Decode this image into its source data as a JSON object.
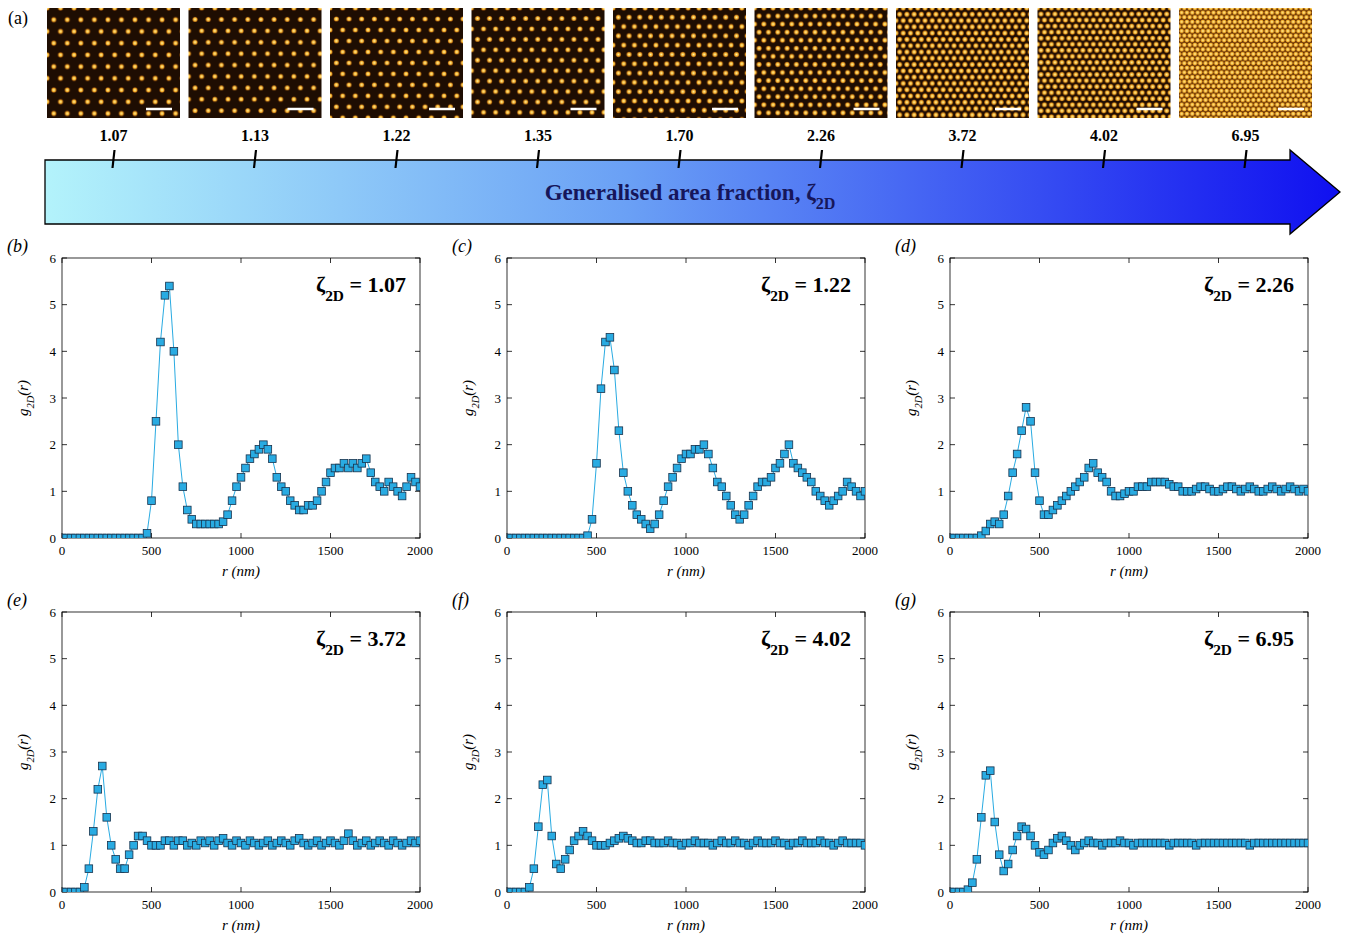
{
  "panel_a": {
    "panel": "(a)",
    "title": "Generalised area fraction, ζ2D",
    "values": [
      1.07,
      1.13,
      1.22,
      1.35,
      1.7,
      2.26,
      3.72,
      4.02,
      6.95
    ],
    "value_labels": [
      "1.07",
      "1.13",
      "1.22",
      "1.35",
      "1.70",
      "2.26",
      "3.72",
      "4.02",
      "6.95"
    ]
  },
  "chart_data": [
    {
      "type": "line",
      "panel": "(b)",
      "title": "ζ2D = 1.07",
      "x_label": "r (nm)",
      "y_label": "g2D(r)",
      "color": "#29abe2",
      "marker": "square",
      "line_style": "solid",
      "xlim": [
        0,
        2000
      ],
      "xticks": [
        0,
        500,
        1000,
        1500,
        2000
      ],
      "ylim": [
        0,
        6
      ],
      "yticks": [
        0,
        1,
        2,
        3,
        4,
        5,
        6
      ],
      "x": [
        0,
        25,
        50,
        75,
        100,
        125,
        150,
        175,
        200,
        225,
        250,
        275,
        300,
        325,
        350,
        375,
        400,
        425,
        450,
        475,
        500,
        525,
        550,
        575,
        600,
        625,
        650,
        675,
        700,
        725,
        750,
        775,
        800,
        825,
        850,
        875,
        900,
        925,
        950,
        975,
        1000,
        1025,
        1050,
        1075,
        1100,
        1125,
        1150,
        1175,
        1200,
        1225,
        1250,
        1275,
        1300,
        1325,
        1350,
        1375,
        1400,
        1425,
        1450,
        1475,
        1500,
        1525,
        1550,
        1575,
        1600,
        1625,
        1650,
        1675,
        1700,
        1725,
        1750,
        1775,
        1800,
        1825,
        1850,
        1875,
        1900,
        1925,
        1950,
        1975,
        2000
      ],
      "values": [
        0,
        0,
        0,
        0,
        0,
        0,
        0,
        0,
        0,
        0,
        0,
        0,
        0,
        0,
        0,
        0,
        0,
        0,
        0,
        0.1,
        0.8,
        2.5,
        4.2,
        5.2,
        5.4,
        4.0,
        2.0,
        1.1,
        0.6,
        0.4,
        0.3,
        0.3,
        0.3,
        0.3,
        0.3,
        0.3,
        0.35,
        0.5,
        0.8,
        1.1,
        1.3,
        1.5,
        1.7,
        1.8,
        1.9,
        2.0,
        1.9,
        1.7,
        1.3,
        1.1,
        1.0,
        0.8,
        0.7,
        0.6,
        0.6,
        0.7,
        0.7,
        0.8,
        1.0,
        1.2,
        1.4,
        1.5,
        1.5,
        1.6,
        1.5,
        1.6,
        1.5,
        1.6,
        1.7,
        1.4,
        1.2,
        1.1,
        1.0,
        1.2,
        1.1,
        1.0,
        0.9,
        1.1,
        1.3,
        1.2,
        1.1
      ]
    },
    {
      "type": "line",
      "panel": "(c)",
      "title": "ζ2D = 1.22",
      "x_label": "r (nm)",
      "y_label": "g2D(r)",
      "color": "#29abe2",
      "marker": "square",
      "line_style": "solid",
      "xlim": [
        0,
        2000
      ],
      "xticks": [
        0,
        500,
        1000,
        1500,
        2000
      ],
      "ylim": [
        0,
        6
      ],
      "yticks": [
        0,
        1,
        2,
        3,
        4,
        5,
        6
      ],
      "x": [
        0,
        25,
        50,
        75,
        100,
        125,
        150,
        175,
        200,
        225,
        250,
        275,
        300,
        325,
        350,
        375,
        400,
        425,
        450,
        475,
        500,
        525,
        550,
        575,
        600,
        625,
        650,
        675,
        700,
        725,
        750,
        775,
        800,
        825,
        850,
        875,
        900,
        925,
        950,
        975,
        1000,
        1025,
        1050,
        1075,
        1100,
        1125,
        1150,
        1175,
        1200,
        1225,
        1250,
        1275,
        1300,
        1325,
        1350,
        1375,
        1400,
        1425,
        1450,
        1475,
        1500,
        1525,
        1550,
        1575,
        1600,
        1625,
        1650,
        1675,
        1700,
        1725,
        1750,
        1775,
        1800,
        1825,
        1850,
        1875,
        1900,
        1925,
        1950,
        1975,
        2000
      ],
      "values": [
        0,
        0,
        0,
        0,
        0,
        0,
        0,
        0,
        0,
        0,
        0,
        0,
        0,
        0,
        0,
        0,
        0,
        0,
        0.05,
        0.4,
        1.6,
        3.2,
        4.2,
        4.3,
        3.6,
        2.3,
        1.4,
        1.0,
        0.7,
        0.5,
        0.4,
        0.3,
        0.2,
        0.3,
        0.5,
        0.8,
        1.1,
        1.3,
        1.5,
        1.7,
        1.8,
        1.8,
        1.9,
        1.9,
        2.0,
        1.8,
        1.5,
        1.2,
        1.1,
        0.9,
        0.7,
        0.5,
        0.4,
        0.5,
        0.7,
        0.9,
        1.1,
        1.2,
        1.2,
        1.3,
        1.5,
        1.6,
        1.8,
        2.0,
        1.6,
        1.5,
        1.4,
        1.3,
        1.2,
        1.0,
        0.9,
        0.8,
        0.7,
        0.8,
        0.9,
        1.0,
        1.2,
        1.1,
        1.0,
        0.9,
        1.0
      ]
    },
    {
      "type": "line",
      "panel": "(d)",
      "title": "ζ2D = 2.26",
      "x_label": "r (nm)",
      "y_label": "g2D(r)",
      "color": "#29abe2",
      "marker": "square",
      "line_style": "solid",
      "xlim": [
        0,
        2000
      ],
      "xticks": [
        0,
        500,
        1000,
        1500,
        2000
      ],
      "ylim": [
        0,
        6
      ],
      "yticks": [
        0,
        1,
        2,
        3,
        4,
        5,
        6
      ],
      "x": [
        0,
        25,
        50,
        75,
        100,
        125,
        150,
        175,
        200,
        225,
        250,
        275,
        300,
        325,
        350,
        375,
        400,
        425,
        450,
        475,
        500,
        525,
        550,
        575,
        600,
        625,
        650,
        675,
        700,
        725,
        750,
        775,
        800,
        825,
        850,
        875,
        900,
        925,
        950,
        975,
        1000,
        1025,
        1050,
        1075,
        1100,
        1125,
        1150,
        1175,
        1200,
        1225,
        1250,
        1275,
        1300,
        1325,
        1350,
        1375,
        1400,
        1425,
        1450,
        1475,
        1500,
        1525,
        1550,
        1575,
        1600,
        1625,
        1650,
        1675,
        1700,
        1725,
        1750,
        1775,
        1800,
        1825,
        1850,
        1875,
        1900,
        1925,
        1950,
        1975,
        2000
      ],
      "values": [
        0,
        0,
        0,
        0,
        0,
        0,
        0,
        0.05,
        0.15,
        0.3,
        0.35,
        0.3,
        0.5,
        0.9,
        1.4,
        1.8,
        2.3,
        2.8,
        2.5,
        1.4,
        0.8,
        0.5,
        0.5,
        0.6,
        0.7,
        0.8,
        0.9,
        1.0,
        1.1,
        1.2,
        1.3,
        1.5,
        1.6,
        1.4,
        1.3,
        1.2,
        1.0,
        0.9,
        0.9,
        0.95,
        1.0,
        1.0,
        1.1,
        1.1,
        1.1,
        1.2,
        1.2,
        1.2,
        1.2,
        1.15,
        1.1,
        1.1,
        1.0,
        1.0,
        1.0,
        1.05,
        1.1,
        1.1,
        1.05,
        1.0,
        1.0,
        1.05,
        1.1,
        1.1,
        1.05,
        1.0,
        1.05,
        1.1,
        1.05,
        1.0,
        1.0,
        1.05,
        1.1,
        1.05,
        1.0,
        1.05,
        1.1,
        1.05,
        1.0,
        1.05,
        1.0
      ]
    },
    {
      "type": "line",
      "panel": "(e)",
      "title": "ζ2D = 3.72",
      "x_label": "r (nm)",
      "y_label": "g2D(r)",
      "color": "#29abe2",
      "marker": "square",
      "line_style": "solid",
      "xlim": [
        0,
        2000
      ],
      "xticks": [
        0,
        500,
        1000,
        1500,
        2000
      ],
      "ylim": [
        0,
        6
      ],
      "yticks": [
        0,
        1,
        2,
        3,
        4,
        5,
        6
      ],
      "x": [
        0,
        25,
        50,
        75,
        100,
        125,
        150,
        175,
        200,
        225,
        250,
        275,
        300,
        325,
        350,
        375,
        400,
        425,
        450,
        475,
        500,
        525,
        550,
        575,
        600,
        625,
        650,
        675,
        700,
        725,
        750,
        775,
        800,
        825,
        850,
        875,
        900,
        925,
        950,
        975,
        1000,
        1025,
        1050,
        1075,
        1100,
        1125,
        1150,
        1175,
        1200,
        1225,
        1250,
        1275,
        1300,
        1325,
        1350,
        1375,
        1400,
        1425,
        1450,
        1475,
        1500,
        1525,
        1550,
        1575,
        1600,
        1625,
        1650,
        1675,
        1700,
        1725,
        1750,
        1775,
        1800,
        1825,
        1850,
        1875,
        1900,
        1925,
        1950,
        1975,
        2000
      ],
      "values": [
        0,
        0,
        0,
        0,
        0,
        0.1,
        0.5,
        1.3,
        2.2,
        2.7,
        1.6,
        1.0,
        0.7,
        0.5,
        0.5,
        0.8,
        1.0,
        1.2,
        1.2,
        1.1,
        1.0,
        1.0,
        1.0,
        1.1,
        1.1,
        1.0,
        1.1,
        1.1,
        1.0,
        1.05,
        1.0,
        1.1,
        1.05,
        1.1,
        1.0,
        1.1,
        1.15,
        1.05,
        1.0,
        1.1,
        1.05,
        1.0,
        1.1,
        1.05,
        1.0,
        1.05,
        1.1,
        1.0,
        1.05,
        1.1,
        1.05,
        1.0,
        1.1,
        1.15,
        1.05,
        1.0,
        1.05,
        1.1,
        1.0,
        1.05,
        1.1,
        1.05,
        1.0,
        1.1,
        1.25,
        1.1,
        1.0,
        1.05,
        1.1,
        1.0,
        1.05,
        1.1,
        1.05,
        1.0,
        1.1,
        1.05,
        1.0,
        1.05,
        1.1,
        1.05,
        1.1
      ]
    },
    {
      "type": "line",
      "panel": "(f)",
      "title": "ζ2D = 4.02",
      "x_label": "r (nm)",
      "y_label": "g2D(r)",
      "color": "#29abe2",
      "marker": "square",
      "line_style": "solid",
      "xlim": [
        0,
        2000
      ],
      "xticks": [
        0,
        500,
        1000,
        1500,
        2000
      ],
      "ylim": [
        0,
        6
      ],
      "yticks": [
        0,
        1,
        2,
        3,
        4,
        5,
        6
      ],
      "x": [
        0,
        25,
        50,
        75,
        100,
        125,
        150,
        175,
        200,
        225,
        250,
        275,
        300,
        325,
        350,
        375,
        400,
        425,
        450,
        475,
        500,
        525,
        550,
        575,
        600,
        625,
        650,
        675,
        700,
        725,
        750,
        775,
        800,
        825,
        850,
        875,
        900,
        925,
        950,
        975,
        1000,
        1025,
        1050,
        1075,
        1100,
        1125,
        1150,
        1175,
        1200,
        1225,
        1250,
        1275,
        1300,
        1325,
        1350,
        1375,
        1400,
        1425,
        1450,
        1475,
        1500,
        1525,
        1550,
        1575,
        1600,
        1625,
        1650,
        1675,
        1700,
        1725,
        1750,
        1775,
        1800,
        1825,
        1850,
        1875,
        1900,
        1925,
        1950,
        1975,
        2000
      ],
      "values": [
        0,
        0,
        0,
        0,
        0,
        0.1,
        0.5,
        1.4,
        2.3,
        2.4,
        1.2,
        0.6,
        0.5,
        0.7,
        0.9,
        1.1,
        1.2,
        1.3,
        1.2,
        1.1,
        1.0,
        1.0,
        1.0,
        1.05,
        1.1,
        1.15,
        1.2,
        1.15,
        1.1,
        1.05,
        1.05,
        1.1,
        1.1,
        1.05,
        1.05,
        1.05,
        1.1,
        1.05,
        1.05,
        1.0,
        1.05,
        1.05,
        1.1,
        1.05,
        1.05,
        1.05,
        1.0,
        1.05,
        1.1,
        1.05,
        1.05,
        1.1,
        1.05,
        1.05,
        1.0,
        1.05,
        1.1,
        1.05,
        1.05,
        1.05,
        1.1,
        1.05,
        1.05,
        1.0,
        1.05,
        1.05,
        1.1,
        1.05,
        1.05,
        1.05,
        1.1,
        1.05,
        1.05,
        1.0,
        1.05,
        1.1,
        1.05,
        1.05,
        1.05,
        1.05,
        1.0
      ]
    },
    {
      "type": "line",
      "panel": "(g)",
      "title": "ζ2D = 6.95",
      "x_label": "r (nm)",
      "y_label": "g2D(r)",
      "color": "#29abe2",
      "marker": "square",
      "line_style": "solid",
      "xlim": [
        0,
        2000
      ],
      "xticks": [
        0,
        500,
        1000,
        1500,
        2000
      ],
      "ylim": [
        0,
        6
      ],
      "yticks": [
        0,
        1,
        2,
        3,
        4,
        5,
        6
      ],
      "x": [
        0,
        25,
        50,
        75,
        100,
        125,
        150,
        175,
        200,
        225,
        250,
        275,
        300,
        325,
        350,
        375,
        400,
        425,
        450,
        475,
        500,
        525,
        550,
        575,
        600,
        625,
        650,
        675,
        700,
        725,
        750,
        775,
        800,
        825,
        850,
        875,
        900,
        925,
        950,
        975,
        1000,
        1025,
        1050,
        1075,
        1100,
        1125,
        1150,
        1175,
        1200,
        1225,
        1250,
        1275,
        1300,
        1325,
        1350,
        1375,
        1400,
        1425,
        1450,
        1475,
        1500,
        1525,
        1550,
        1575,
        1600,
        1625,
        1650,
        1675,
        1700,
        1725,
        1750,
        1775,
        1800,
        1825,
        1850,
        1875,
        1900,
        1925,
        1950,
        1975,
        2000
      ],
      "values": [
        0,
        0,
        0,
        0,
        0.05,
        0.2,
        0.7,
        1.6,
        2.5,
        2.6,
        1.5,
        0.8,
        0.45,
        0.6,
        0.9,
        1.2,
        1.4,
        1.35,
        1.2,
        1.0,
        0.85,
        0.8,
        0.9,
        1.05,
        1.15,
        1.2,
        1.1,
        1.0,
        0.9,
        1.0,
        1.05,
        1.1,
        1.05,
        1.05,
        1.0,
        1.05,
        1.05,
        1.05,
        1.1,
        1.05,
        1.05,
        1.0,
        1.05,
        1.05,
        1.05,
        1.05,
        1.05,
        1.05,
        1.05,
        1.0,
        1.05,
        1.05,
        1.05,
        1.05,
        1.05,
        1.0,
        1.05,
        1.05,
        1.05,
        1.05,
        1.05,
        1.05,
        1.05,
        1.05,
        1.05,
        1.05,
        1.05,
        1.0,
        1.05,
        1.05,
        1.05,
        1.05,
        1.05,
        1.05,
        1.05,
        1.05,
        1.05,
        1.05,
        1.05,
        1.05,
        1.05
      ]
    }
  ]
}
